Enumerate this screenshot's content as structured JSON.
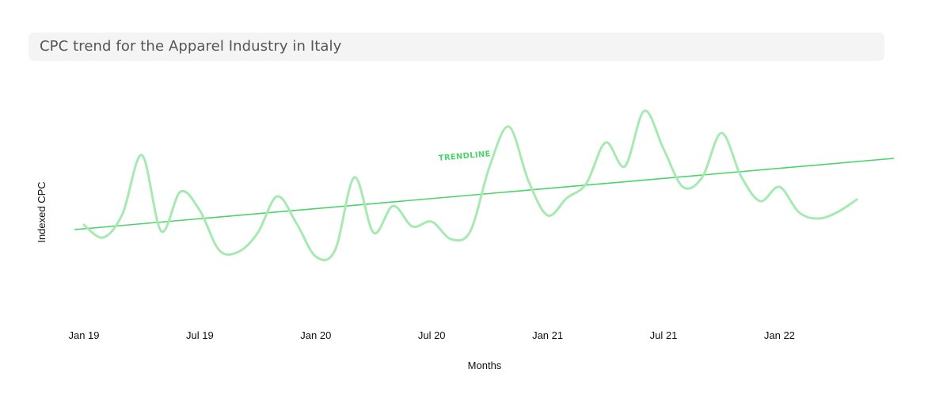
{
  "chart_data": {
    "type": "line",
    "title": "CPC trend for the Apparel Industry in Italy",
    "xlabel": "Months",
    "ylabel": "Indexed CPC",
    "x_tick_labels": [
      "Jan 19",
      "Jul 19",
      "Jan 20",
      "Jul 20",
      "Jan 21",
      "Jul 21",
      "Jan 22"
    ],
    "x": [
      "2019-01-01",
      "2019-02-01",
      "2019-03-01",
      "2019-04-01",
      "2019-05-01",
      "2019-06-01",
      "2019-07-01",
      "2019-08-01",
      "2019-09-01",
      "2019-10-01",
      "2019-11-01",
      "2019-12-01",
      "2020-01-01",
      "2020-02-01",
      "2020-03-01",
      "2020-04-01",
      "2020-05-01",
      "2020-06-01",
      "2020-07-01",
      "2020-08-01",
      "2020-09-01",
      "2020-10-01",
      "2020-11-01",
      "2020-12-01",
      "2021-01-01",
      "2021-02-01",
      "2021-03-01",
      "2021-04-01",
      "2021-05-01",
      "2021-06-01",
      "2021-07-01",
      "2021-08-01",
      "2021-09-01",
      "2021-10-01",
      "2021-11-01",
      "2021-12-01",
      "2022-01-01",
      "2022-02-01",
      "2022-03-01",
      "2022-04-01",
      "2022-05-01"
    ],
    "series": [
      {
        "values": [
          32,
          24,
          39,
          76,
          28,
          53,
          41,
          16,
          15,
          27,
          50,
          33,
          12,
          16,
          62,
          27,
          44,
          31,
          34,
          23,
          28,
          69,
          94,
          60,
          38,
          49,
          58,
          84,
          69,
          104,
          80,
          56,
          62,
          90,
          63,
          47,
          56,
          40,
          36,
          40,
          48
        ],
        "color": "#a6eab1"
      }
    ],
    "trendline": {
      "label": "TRENDLINE",
      "color": "#4ad46a",
      "start": 29,
      "end": 74
    },
    "ylim": [
      -25,
      125
    ],
    "grid": false,
    "legend": "none"
  }
}
